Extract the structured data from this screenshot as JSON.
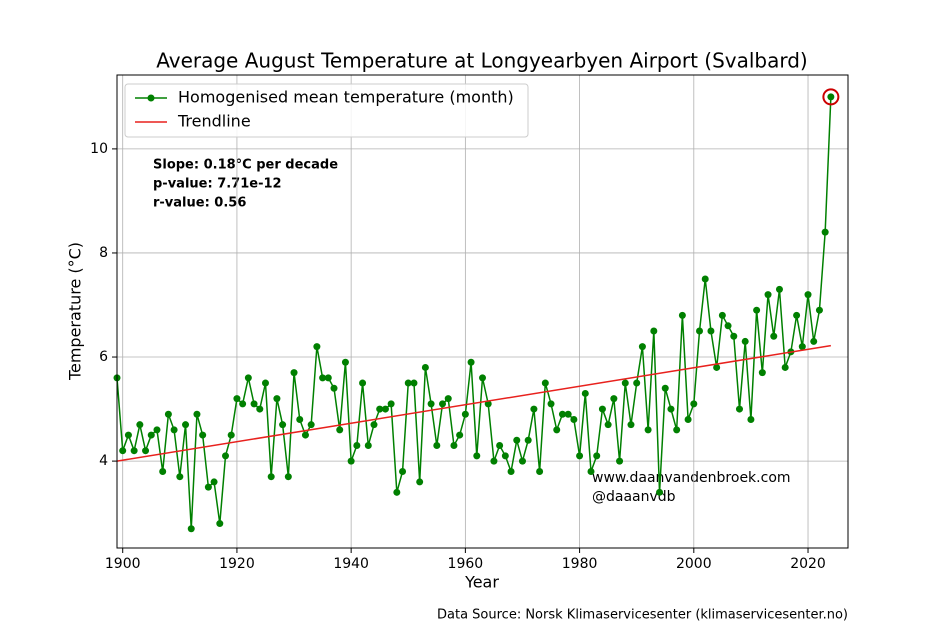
{
  "chart_data": {
    "type": "line",
    "title": "Average August Temperature at Longyearbyen Airport (Svalbard)",
    "x_label": "Year",
    "y_label": "Temperature (°C)",
    "xlim": [
      1899,
      2027
    ],
    "ylim": [
      2.33,
      11.42
    ],
    "xticks": [
      1900,
      1920,
      1940,
      1960,
      1980,
      2000,
      2020
    ],
    "yticks": [
      4,
      6,
      8,
      10
    ],
    "grid": true,
    "legend": "upper left",
    "series": [
      {
        "name": "Homogenised mean temperature (month)",
        "color": "#008000",
        "x": [
          1899,
          1900,
          1901,
          1902,
          1903,
          1904,
          1905,
          1906,
          1907,
          1908,
          1909,
          1910,
          1911,
          1912,
          1913,
          1914,
          1915,
          1916,
          1917,
          1918,
          1919,
          1920,
          1921,
          1922,
          1923,
          1924,
          1925,
          1926,
          1927,
          1928,
          1929,
          1930,
          1931,
          1932,
          1933,
          1934,
          1935,
          1936,
          1937,
          1938,
          1939,
          1940,
          1941,
          1942,
          1943,
          1944,
          1945,
          1946,
          1947,
          1948,
          1949,
          1950,
          1951,
          1952,
          1953,
          1954,
          1955,
          1956,
          1957,
          1958,
          1959,
          1960,
          1961,
          1962,
          1963,
          1964,
          1965,
          1966,
          1967,
          1968,
          1969,
          1970,
          1971,
          1972,
          1973,
          1974,
          1975,
          1976,
          1977,
          1978,
          1979,
          1980,
          1981,
          1982,
          1983,
          1984,
          1985,
          1986,
          1987,
          1988,
          1989,
          1990,
          1991,
          1992,
          1993,
          1994,
          1995,
          1996,
          1997,
          1998,
          1999,
          2000,
          2001,
          2002,
          2003,
          2004,
          2005,
          2006,
          2007,
          2008,
          2009,
          2010,
          2011,
          2012,
          2013,
          2014,
          2015,
          2016,
          2017,
          2018,
          2019,
          2020,
          2021,
          2022,
          2023,
          2024
        ],
        "values": [
          5.6,
          4.2,
          4.5,
          4.2,
          4.7,
          4.2,
          4.5,
          4.6,
          3.8,
          4.9,
          4.6,
          3.7,
          4.7,
          2.7,
          4.9,
          4.5,
          3.5,
          3.6,
          2.8,
          4.1,
          4.5,
          5.2,
          5.1,
          5.6,
          5.1,
          5.0,
          5.5,
          3.7,
          5.2,
          4.7,
          3.7,
          5.7,
          4.8,
          4.5,
          4.7,
          6.2,
          5.6,
          5.6,
          5.4,
          4.6,
          5.9,
          4.0,
          4.3,
          5.5,
          4.3,
          4.7,
          5.0,
          5.0,
          5.1,
          3.4,
          3.8,
          5.5,
          5.5,
          3.6,
          5.8,
          5.1,
          4.3,
          5.1,
          5.2,
          4.3,
          4.5,
          4.9,
          5.9,
          4.1,
          5.6,
          5.1,
          4.0,
          4.3,
          4.1,
          3.8,
          4.4,
          4.0,
          4.4,
          5.0,
          3.8,
          5.5,
          5.1,
          4.6,
          4.9,
          4.9,
          4.8,
          4.1,
          5.3,
          3.8,
          4.1,
          5.0,
          4.7,
          5.2,
          4.0,
          5.5,
          4.7,
          5.5,
          6.2,
          4.6,
          6.5,
          3.4,
          5.4,
          5.0,
          4.6,
          6.8,
          4.8,
          5.1,
          6.5,
          7.5,
          6.5,
          5.8,
          6.8,
          6.6,
          6.4,
          5.0,
          6.3,
          4.8,
          6.9,
          5.7,
          7.2,
          6.4,
          7.3,
          5.8,
          6.1,
          6.8,
          6.2,
          7.2,
          6.3,
          6.9,
          8.4,
          11.0
        ]
      },
      {
        "name": "Trendline",
        "color": "#e8211d",
        "x": [
          1899,
          2024
        ],
        "values": [
          4.0,
          6.22
        ]
      }
    ],
    "annotations": [
      "Slope: 0.18°C per decade",
      "p-value: 7.71e-12",
      "r-value: 0.56"
    ],
    "watermark": [
      "www.daanvandenbroek.com",
      "@daaanvdb"
    ],
    "source": "Data Source: Norsk Klimaservicesenter (klimaservicesenter.no)"
  }
}
